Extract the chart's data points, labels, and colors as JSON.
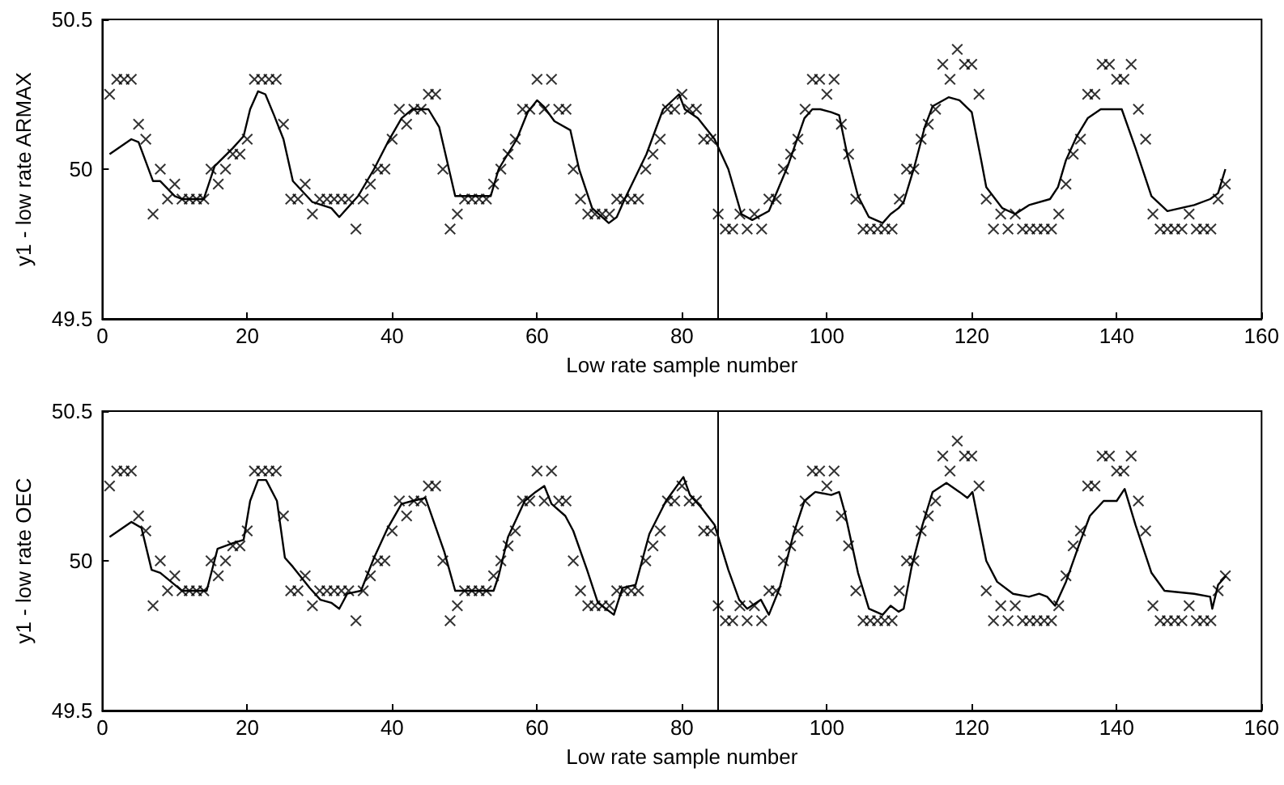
{
  "chart_data": [
    {
      "type": "scatter",
      "xlabel": "Low rate sample number",
      "ylabel": "y1 - low rate ARMAX",
      "xlim": [
        0,
        160
      ],
      "xticks": [
        0,
        20,
        40,
        60,
        80,
        100,
        120,
        140,
        160
      ],
      "ylim": [
        49.5,
        50.5
      ],
      "yticks": [
        49.5,
        50,
        50.5
      ],
      "ref_lines": [
        {
          "axis": "x",
          "value": 85,
          "color": "#000000"
        }
      ],
      "series": [
        {
          "type": "scatter",
          "marker": "cross",
          "color": "#000000",
          "x": [
            1,
            2,
            3,
            4,
            5,
            6,
            7,
            8,
            9,
            10,
            11,
            12,
            13,
            14,
            15,
            16,
            17,
            18,
            19,
            20,
            21,
            22,
            23,
            24,
            25,
            26,
            27,
            28,
            29,
            30,
            31,
            32,
            33,
            34,
            35,
            36,
            37,
            38,
            39,
            40,
            41,
            42,
            43,
            44,
            45,
            46,
            47,
            48,
            49,
            50,
            51,
            52,
            53,
            54,
            55,
            56,
            57,
            58,
            59,
            60,
            61,
            62,
            63,
            64,
            65,
            66,
            67,
            68,
            69,
            70,
            71,
            72,
            73,
            74,
            75,
            76,
            77,
            78,
            79,
            80,
            81,
            82,
            83,
            84,
            85,
            86,
            87,
            88,
            89,
            90,
            91,
            92,
            93,
            94,
            95,
            96,
            97,
            98,
            99,
            100,
            101,
            102,
            103,
            104,
            105,
            106,
            107,
            108,
            109,
            110,
            111,
            112,
            113,
            114,
            115,
            116,
            117,
            118,
            119,
            120,
            121,
            122,
            123,
            124,
            125,
            126,
            127,
            128,
            129,
            130,
            131,
            132,
            133,
            134,
            135,
            136,
            137,
            138,
            139,
            140,
            141,
            142,
            143,
            144,
            145,
            146,
            147,
            148,
            149,
            150,
            151,
            152,
            153,
            154,
            155
          ],
          "values": [
            50.25,
            50.3,
            50.3,
            50.3,
            50.15,
            50.1,
            49.85,
            50,
            49.9,
            49.95,
            49.9,
            49.9,
            49.9,
            49.9,
            50,
            49.95,
            50,
            50.05,
            50.05,
            50.1,
            50.3,
            50.3,
            50.3,
            50.3,
            50.15,
            49.9,
            49.9,
            49.95,
            49.85,
            49.9,
            49.9,
            49.9,
            49.9,
            49.9,
            49.8,
            49.9,
            49.95,
            50,
            50,
            50.1,
            50.2,
            50.15,
            50.2,
            50.2,
            50.25,
            50.25,
            50,
            49.8,
            49.85,
            49.9,
            49.9,
            49.9,
            49.9,
            49.95,
            50,
            50.05,
            50.1,
            50.2,
            50.2,
            50.3,
            50.2,
            50.3,
            50.2,
            50.2,
            50,
            49.9,
            49.85,
            49.85,
            49.85,
            49.85,
            49.9,
            49.9,
            49.9,
            49.9,
            50,
            50.05,
            50.1,
            50.2,
            50.2,
            50.25,
            50.2,
            50.2,
            50.1,
            50.1,
            49.85,
            49.8,
            49.8,
            49.85,
            49.8,
            49.85,
            49.8,
            49.9,
            49.9,
            50,
            50.05,
            50.1,
            50.2,
            50.3,
            50.3,
            50.25,
            50.3,
            50.15,
            50.05,
            49.9,
            49.8,
            49.8,
            49.8,
            49.8,
            49.8,
            49.9,
            50,
            50,
            50.1,
            50.15,
            50.2,
            50.35,
            50.3,
            50.4,
            50.35,
            50.35,
            50.25,
            49.9,
            49.8,
            49.85,
            49.8,
            49.85,
            49.8,
            49.8,
            49.8,
            49.8,
            49.8,
            49.85,
            49.95,
            50.05,
            50.1,
            50.25,
            50.25,
            50.35,
            50.35,
            50.3,
            50.3,
            50.35,
            50.2,
            50.1,
            49.85,
            49.8,
            49.8,
            49.8,
            49.8,
            49.85,
            49.8,
            49.8,
            49.8,
            49.9,
            49.95
          ]
        },
        {
          "type": "line",
          "color": "#000000",
          "x": [
            1,
            4,
            5,
            7,
            8,
            10,
            11,
            14,
            15.5,
            18,
            19.5,
            20.4,
            21.5,
            22.5,
            23.7,
            25,
            26.3,
            29,
            31.6,
            32.7,
            35.3,
            37.5,
            39.4,
            41.3,
            42.8,
            45,
            46.5,
            48.7,
            53.6,
            54.7,
            57.2,
            58.7,
            60,
            60.9,
            62.4,
            64.6,
            65.8,
            67.6,
            69.9,
            71,
            72.1,
            75.1,
            77.4,
            79.6,
            80.4,
            82.2,
            84.5,
            86.4,
            88.2,
            89.7,
            92,
            94.6,
            96.9,
            98,
            99.1,
            100.6,
            101.7,
            102.8,
            104.3,
            105.8,
            107.7,
            108.8,
            109.9,
            110.6,
            112.1,
            113.5,
            114.6,
            116.8,
            118.3,
            120,
            121.3,
            122,
            124.2,
            126,
            127.9,
            130.8,
            131.9,
            133,
            134.5,
            136,
            137.8,
            140.7,
            142.6,
            144.8,
            147,
            150.7,
            152.9,
            154,
            155
          ],
          "values": [
            50.05,
            50.1,
            50.09,
            49.96,
            49.96,
            49.91,
            49.9,
            49.9,
            50.01,
            50.07,
            50.11,
            50.2,
            50.26,
            50.25,
            50.18,
            50.1,
            49.96,
            49.89,
            49.87,
            49.84,
            49.91,
            50,
            50.09,
            50.17,
            50.2,
            50.2,
            50.14,
            49.91,
            49.91,
            50,
            50.1,
            50.19,
            50.23,
            50.21,
            50.16,
            50.13,
            50,
            49.87,
            49.82,
            49.84,
            49.9,
            50.05,
            50.2,
            50.25,
            50.2,
            50.17,
            50.1,
            50,
            49.85,
            49.83,
            49.86,
            50.01,
            50.17,
            50.2,
            50.2,
            50.19,
            50.18,
            50.05,
            49.91,
            49.84,
            49.82,
            49.85,
            49.87,
            49.89,
            50.01,
            50.14,
            50.21,
            50.24,
            50.23,
            50.19,
            50.03,
            49.94,
            49.87,
            49.85,
            49.88,
            49.9,
            49.94,
            50.03,
            50.11,
            50.17,
            50.2,
            50.2,
            50.07,
            49.91,
            49.86,
            49.88,
            49.9,
            49.92,
            50
          ]
        }
      ]
    },
    {
      "type": "scatter",
      "xlabel": "Low rate sample number",
      "ylabel": "y1 - low rate OEC",
      "xlim": [
        0,
        160
      ],
      "xticks": [
        0,
        20,
        40,
        60,
        80,
        100,
        120,
        140,
        160
      ],
      "ylim": [
        49.5,
        50.5
      ],
      "yticks": [
        49.5,
        50,
        50.5
      ],
      "ref_lines": [
        {
          "axis": "x",
          "value": 85,
          "color": "#000000"
        }
      ],
      "series": [
        {
          "type": "scatter",
          "marker": "cross",
          "color": "#000000",
          "x": [
            1,
            2,
            3,
            4,
            5,
            6,
            7,
            8,
            9,
            10,
            11,
            12,
            13,
            14,
            15,
            16,
            17,
            18,
            19,
            20,
            21,
            22,
            23,
            24,
            25,
            26,
            27,
            28,
            29,
            30,
            31,
            32,
            33,
            34,
            35,
            36,
            37,
            38,
            39,
            40,
            41,
            42,
            43,
            44,
            45,
            46,
            47,
            48,
            49,
            50,
            51,
            52,
            53,
            54,
            55,
            56,
            57,
            58,
            59,
            60,
            61,
            62,
            63,
            64,
            65,
            66,
            67,
            68,
            69,
            70,
            71,
            72,
            73,
            74,
            75,
            76,
            77,
            78,
            79,
            80,
            81,
            82,
            83,
            84,
            85,
            86,
            87,
            88,
            89,
            90,
            91,
            92,
            93,
            94,
            95,
            96,
            97,
            98,
            99,
            100,
            101,
            102,
            103,
            104,
            105,
            106,
            107,
            108,
            109,
            110,
            111,
            112,
            113,
            114,
            115,
            116,
            117,
            118,
            119,
            120,
            121,
            122,
            123,
            124,
            125,
            126,
            127,
            128,
            129,
            130,
            131,
            132,
            133,
            134,
            135,
            136,
            137,
            138,
            139,
            140,
            141,
            142,
            143,
            144,
            145,
            146,
            147,
            148,
            149,
            150,
            151,
            152,
            153,
            154,
            155
          ],
          "values": [
            50.25,
            50.3,
            50.3,
            50.3,
            50.15,
            50.1,
            49.85,
            50,
            49.9,
            49.95,
            49.9,
            49.9,
            49.9,
            49.9,
            50,
            49.95,
            50,
            50.05,
            50.05,
            50.1,
            50.3,
            50.3,
            50.3,
            50.3,
            50.15,
            49.9,
            49.9,
            49.95,
            49.85,
            49.9,
            49.9,
            49.9,
            49.9,
            49.9,
            49.8,
            49.9,
            49.95,
            50,
            50,
            50.1,
            50.2,
            50.15,
            50.2,
            50.2,
            50.25,
            50.25,
            50,
            49.8,
            49.85,
            49.9,
            49.9,
            49.9,
            49.9,
            49.95,
            50,
            50.05,
            50.1,
            50.2,
            50.2,
            50.3,
            50.2,
            50.3,
            50.2,
            50.2,
            50,
            49.9,
            49.85,
            49.85,
            49.85,
            49.85,
            49.9,
            49.9,
            49.9,
            49.9,
            50,
            50.05,
            50.1,
            50.2,
            50.2,
            50.25,
            50.2,
            50.2,
            50.1,
            50.1,
            49.85,
            49.8,
            49.8,
            49.85,
            49.8,
            49.85,
            49.8,
            49.9,
            49.9,
            50,
            50.05,
            50.1,
            50.2,
            50.3,
            50.3,
            50.25,
            50.3,
            50.15,
            50.05,
            49.9,
            49.8,
            49.8,
            49.8,
            49.8,
            49.8,
            49.9,
            50,
            50,
            50.1,
            50.15,
            50.2,
            50.35,
            50.3,
            50.4,
            50.35,
            50.35,
            50.25,
            49.9,
            49.8,
            49.85,
            49.8,
            49.85,
            49.8,
            49.8,
            49.8,
            49.8,
            49.8,
            49.85,
            49.95,
            50.05,
            50.1,
            50.25,
            50.25,
            50.35,
            50.35,
            50.3,
            50.3,
            50.35,
            50.2,
            50.1,
            49.85,
            49.8,
            49.8,
            49.8,
            49.8,
            49.85,
            49.8,
            49.8,
            49.8,
            49.9,
            49.95
          ]
        },
        {
          "type": "line",
          "color": "#000000",
          "x": [
            1,
            4,
            5.4,
            6.8,
            8,
            10,
            11,
            14.4,
            15.9,
            18.1,
            19.5,
            20.4,
            21.5,
            22.6,
            24.1,
            25.2,
            26.3,
            28.6,
            30.1,
            31.6,
            32.7,
            33.8,
            35.7,
            37.5,
            39.4,
            41.3,
            42.8,
            44.6,
            47.2,
            48.7,
            54,
            54.7,
            56,
            58.3,
            59.8,
            61,
            62,
            63.9,
            65,
            66.9,
            68.4,
            70.6,
            71.8,
            73.6,
            75.5,
            77.8,
            80.2,
            81.1,
            82.6,
            84.5,
            86.4,
            87.9,
            89,
            90.9,
            92,
            93.5,
            95.4,
            96.9,
            98.4,
            100.6,
            101.7,
            102.5,
            104.3,
            105.8,
            107.7,
            108.8,
            109.9,
            110.6,
            111.7,
            113.2,
            114.6,
            116.5,
            118.3,
            119.4,
            120.1,
            122,
            123.5,
            125.7,
            127.9,
            129.3,
            130.4,
            131.5,
            133,
            134.9,
            136.3,
            138.2,
            140,
            141.1,
            142.6,
            144.8,
            146.6,
            150.7,
            152.9,
            153.2,
            154,
            155.1
          ],
          "values": [
            50.08,
            50.13,
            50.11,
            49.97,
            49.96,
            49.92,
            49.9,
            49.9,
            50.04,
            50.06,
            50.07,
            50.2,
            50.27,
            50.27,
            50.2,
            50.01,
            49.98,
            49.91,
            49.87,
            49.86,
            49.84,
            49.89,
            49.9,
            50.01,
            50.11,
            50.19,
            50.2,
            50.21,
            50.03,
            49.9,
            49.9,
            49.95,
            50.08,
            50.2,
            50.23,
            50.25,
            50.19,
            50.15,
            50.1,
            49.97,
            49.86,
            49.82,
            49.91,
            49.92,
            50.09,
            50.2,
            50.28,
            50.22,
            50.18,
            50.12,
            49.97,
            49.87,
            49.84,
            49.87,
            49.82,
            49.91,
            50.09,
            50.2,
            50.23,
            50.22,
            50.23,
            50.16,
            49.96,
            49.84,
            49.82,
            49.85,
            49.83,
            49.84,
            49.98,
            50.12,
            50.23,
            50.26,
            50.23,
            50.21,
            50.23,
            50,
            49.93,
            49.89,
            49.88,
            49.89,
            49.88,
            49.85,
            49.93,
            50.06,
            50.15,
            50.2,
            50.2,
            50.24,
            50.12,
            49.96,
            49.9,
            49.89,
            49.88,
            49.84,
            49.92,
            49.95
          ]
        }
      ]
    }
  ]
}
